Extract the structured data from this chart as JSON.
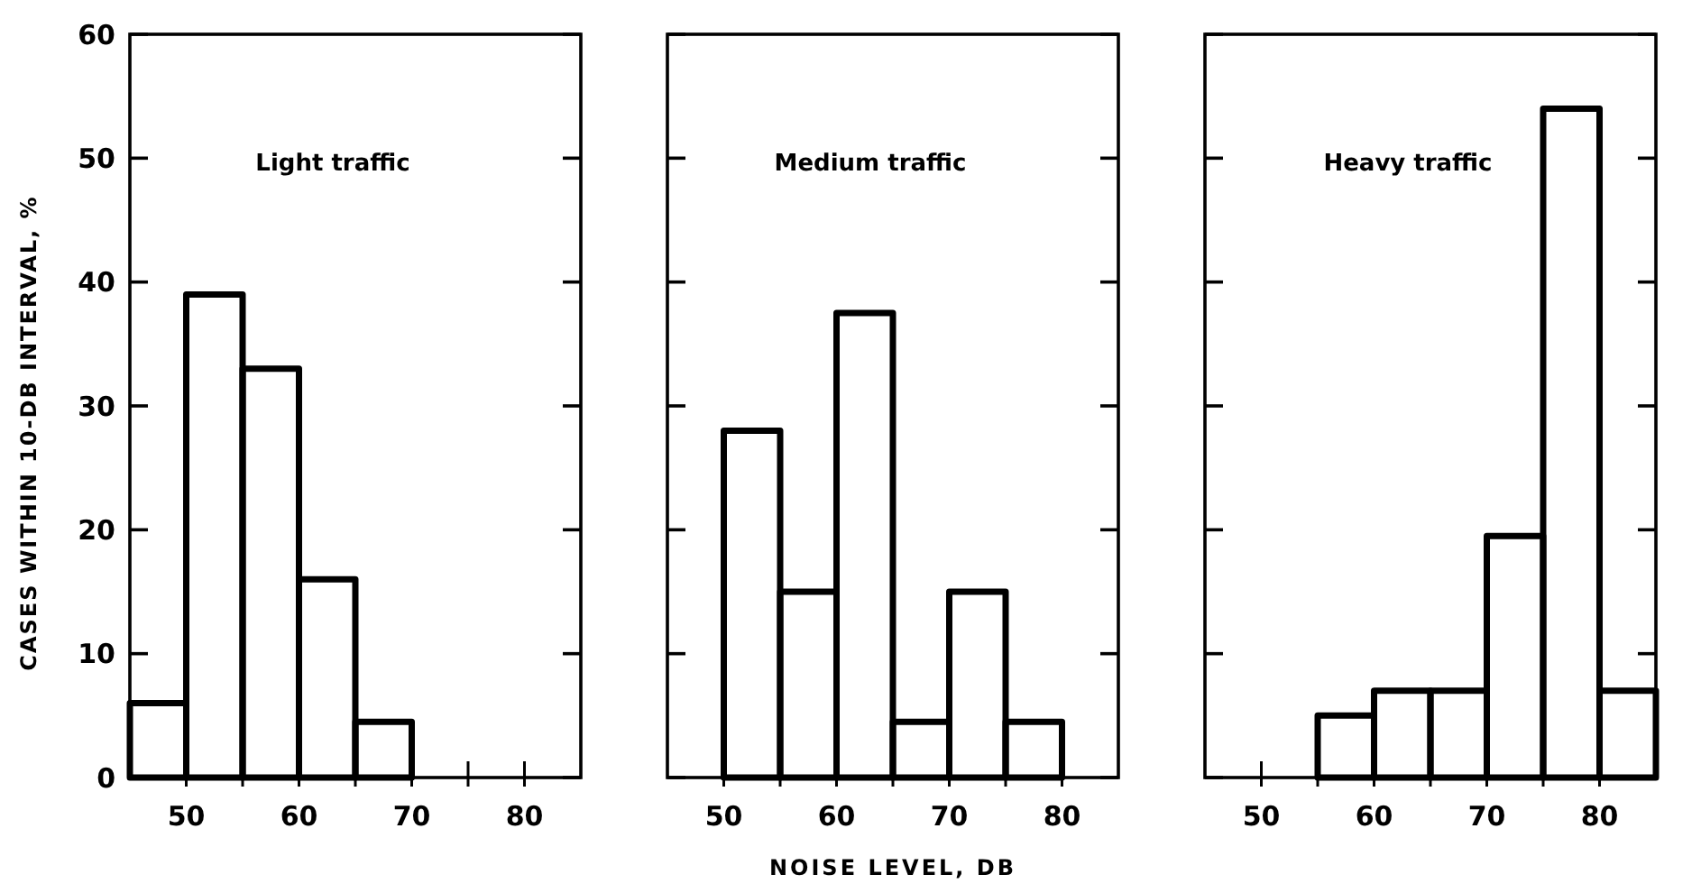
{
  "chart_data": [
    {
      "type": "histogram",
      "title": "Light traffic",
      "ylabel": "CASES WITHIN 10-DB INTERVAL, %",
      "bins": [
        45,
        50,
        55,
        60,
        65,
        70
      ],
      "values": [
        6,
        39,
        33,
        16,
        4.5
      ],
      "color": "#000000",
      "xlim": [
        45,
        85
      ],
      "xticks": [
        50,
        {
          "value": 55,
          "label": null
        },
        60,
        {
          "value": 65,
          "label": null
        },
        70,
        {
          "value": 75,
          "label": null
        },
        80
      ],
      "ylim": [
        0,
        60
      ],
      "yticks": [
        0,
        10,
        20,
        30,
        40,
        50,
        60
      ],
      "grid": false
    },
    {
      "type": "histogram",
      "title": "Medium traffic",
      "xlabel": "NOISE LEVEL, DB",
      "bins": [
        50,
        55,
        60,
        65,
        70,
        75,
        80
      ],
      "values": [
        28,
        15,
        37.5,
        4.5,
        15,
        4.5
      ],
      "color": "#000000",
      "xlim": [
        45,
        85
      ],
      "xticks": [
        50,
        {
          "value": 55,
          "label": null
        },
        60,
        {
          "value": 65,
          "label": null
        },
        70,
        {
          "value": 75,
          "label": null
        },
        80
      ],
      "ylim": [
        0,
        60
      ],
      "yticks": [
        0,
        10,
        20,
        30,
        40,
        50,
        60
      ],
      "tick_labels": "x",
      "grid": false
    },
    {
      "type": "histogram",
      "title": "Heavy traffic",
      "bins": [
        55,
        60,
        65,
        70,
        75,
        80,
        85
      ],
      "values": [
        5,
        7,
        7,
        19.5,
        54,
        7
      ],
      "color": "#000000",
      "xlim": [
        45,
        85
      ],
      "xticks": [
        50,
        {
          "value": 55,
          "label": null
        },
        60,
        {
          "value": 65,
          "label": null
        },
        70,
        {
          "value": 75,
          "label": null
        },
        80
      ],
      "ylim": [
        0,
        60
      ],
      "yticks": [
        0,
        10,
        20,
        30,
        40,
        50,
        60
      ],
      "tick_labels": "x",
      "grid": false
    }
  ]
}
